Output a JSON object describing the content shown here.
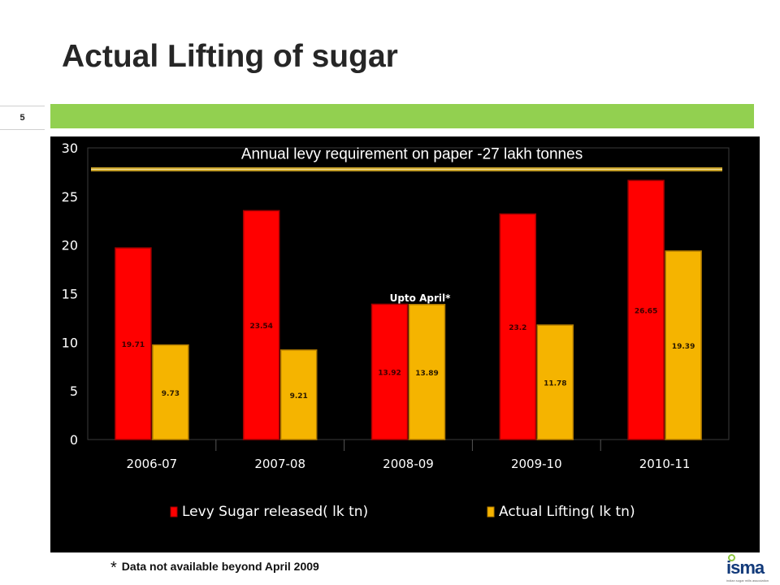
{
  "slide": {
    "title": "Actual Lifting of sugar",
    "number": "5",
    "footnote_star": "*",
    "footnote": "Data not available beyond April 2009",
    "logo_text": "isma",
    "logo_tagline": "indian sugar mills association"
  },
  "colors": {
    "levy": "#ff0000",
    "lifting": "#f5b400",
    "green_bar": "#92d050",
    "chart_bg": "#000000",
    "reference_line": "#c9a227"
  },
  "chart_data": {
    "type": "bar",
    "categories": [
      "2006-07",
      "2007-08",
      "2008-09",
      "2009-10",
      "2010-11"
    ],
    "series": [
      {
        "name": "Levy Sugar released( lk tn)",
        "values": [
          19.71,
          23.54,
          13.92,
          23.2,
          26.65
        ],
        "labels": [
          "19.71",
          "23.54",
          "13.92",
          "23.2",
          "26.65"
        ]
      },
      {
        "name": "Actual Lifting( lk tn)",
        "values": [
          9.73,
          9.21,
          13.89,
          11.78,
          19.39
        ],
        "labels": [
          "9.73",
          "9.21",
          "13.89",
          "11.78",
          "19.39"
        ]
      }
    ],
    "ylim": [
      0,
      30
    ],
    "yticks": [
      "0",
      "5",
      "10",
      "15",
      "20",
      "25",
      "30"
    ],
    "reference_line": {
      "value": 27.8,
      "label": "Annual levy requirement on paper -27 lakh tonnes"
    },
    "annotation": "Upto April*",
    "legend_position": "bottom",
    "grid": false
  }
}
